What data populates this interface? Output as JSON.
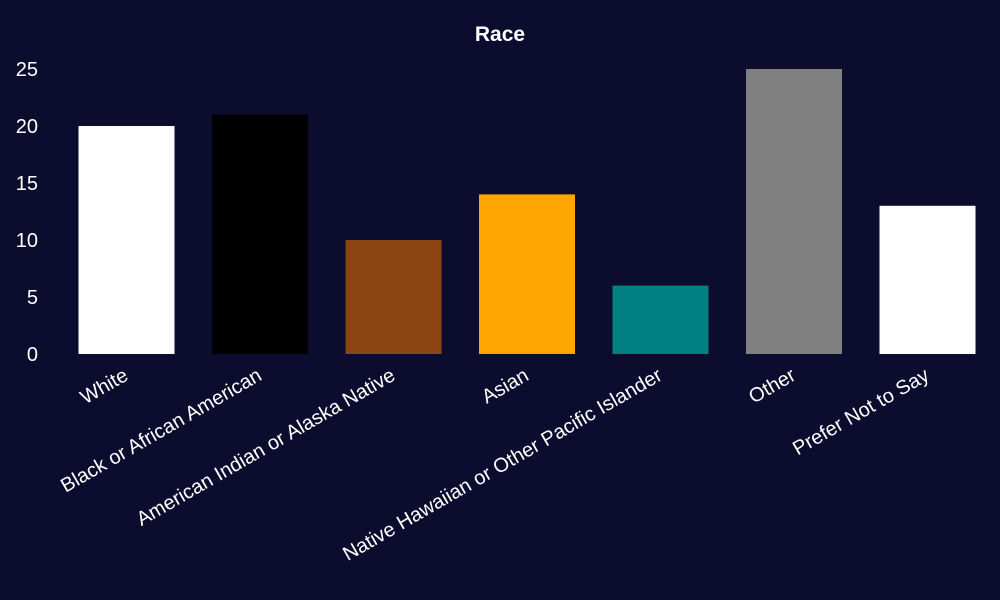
{
  "chart_data": {
    "type": "bar",
    "title": "Race",
    "xlabel": "",
    "ylabel": "",
    "categories": [
      "White",
      "Black or African American",
      "American Indian or Alaska Native",
      "Asian",
      "Native Hawaiian or Other Pacific Islander",
      "Other",
      "Prefer Not to Say"
    ],
    "values": [
      20,
      21,
      10,
      14,
      6,
      25,
      13
    ],
    "colors": [
      "#ffffff",
      "#000000",
      "#8b4513",
      "#ffa500",
      "#008080",
      "#808080",
      "#ffffff"
    ],
    "ylim": [
      0,
      25
    ],
    "yticks": [
      0,
      5,
      10,
      15,
      20,
      25
    ],
    "grid": false,
    "legend": "none",
    "background": "#0c0c2e"
  }
}
